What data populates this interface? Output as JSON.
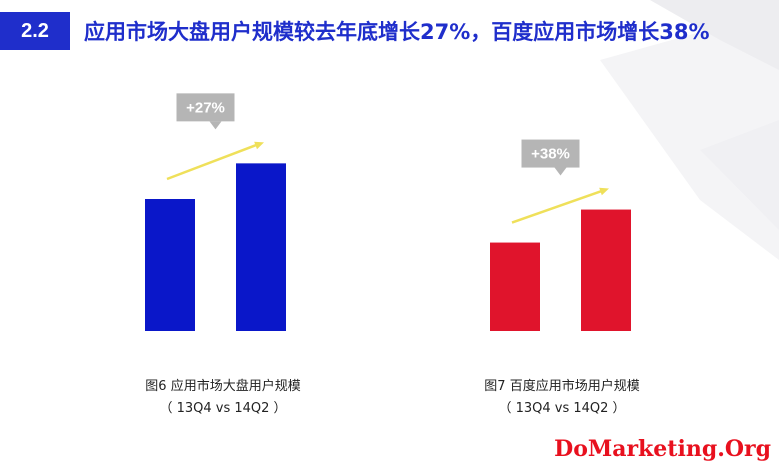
{
  "header": {
    "section_number": "2.2",
    "title": "应用市场大盘用户规模较去年底增长27%，百度应用市场增长38%"
  },
  "colors": {
    "header_blue": "#1f2ecb",
    "bar_blue": "#0a17c9",
    "bar_red": "#e0142c",
    "arrow_yellow": "#efe05a",
    "badge_gray": "#b5b5b5"
  },
  "chart_data": [
    {
      "type": "bar",
      "categories": [
        "13Q4",
        "14Q2"
      ],
      "values": [
        100,
        127
      ],
      "growth_label": "+27%",
      "color": "#0a17c9",
      "caption_line1": "图6 应用市场大盘用户规模",
      "caption_line2": "（ 13Q4 vs 14Q2 ）"
    },
    {
      "type": "bar",
      "categories": [
        "13Q4",
        "14Q2"
      ],
      "values": [
        67,
        92
      ],
      "growth_label": "+38%",
      "color": "#e0142c",
      "caption_line1": "图7 百度应用市场用户规模",
      "caption_line2": "（ 13Q4 vs 14Q2 ）"
    }
  ],
  "watermark": "DoMarketing.Org"
}
